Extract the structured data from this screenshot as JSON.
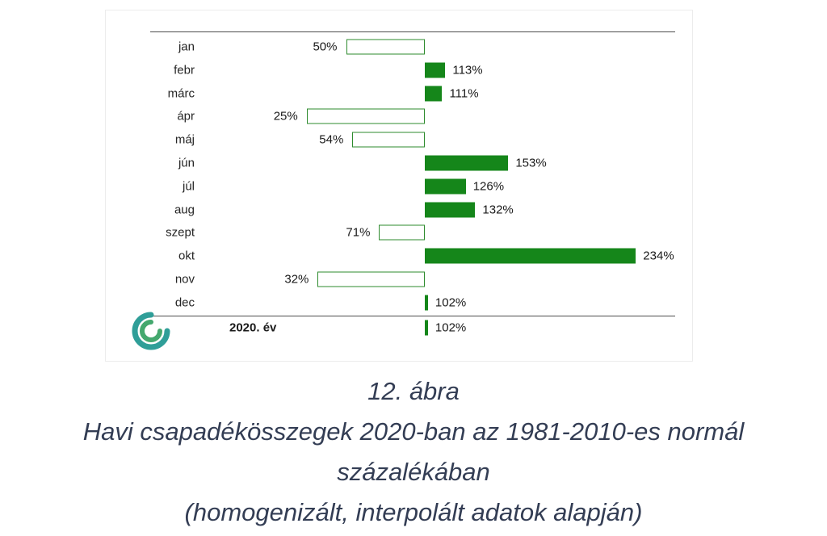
{
  "chart_data": {
    "type": "bar",
    "orientation": "horizontal",
    "title": "",
    "unit": "%",
    "baseline": 100,
    "categories": [
      "jan",
      "febr",
      "márc",
      "ápr",
      "máj",
      "jún",
      "júl",
      "aug",
      "szept",
      "okt",
      "nov",
      "dec"
    ],
    "values": [
      50,
      113,
      111,
      25,
      54,
      153,
      126,
      132,
      71,
      234,
      32,
      102
    ],
    "labels": [
      "50%",
      "113%",
      "111%",
      "25%",
      "54%",
      "153%",
      "126%",
      "132%",
      "71%",
      "234%",
      "32%",
      "102%"
    ],
    "summary_row": {
      "label": "2020. év",
      "value": 102,
      "display": "102%"
    },
    "legend": "bars left of 100% baseline are hollow (below normal), bars right are filled (above normal)",
    "colors": {
      "filled": "#15861a",
      "outline": "#2e8b2e",
      "hollow_fill": "#ffffff",
      "rule": "#4d4d4d"
    }
  },
  "logo": {
    "name": "spiral-logo",
    "outer_color": "#2f9e98",
    "inner_color": "#44a86e"
  },
  "caption": {
    "line1": "12. ábra",
    "line2": "Havi csapadékösszegek 2020-ban az 1981-2010-es normál",
    "line3": "százalékában",
    "line4": "(homogenizált, interpolált adatok alapján)"
  }
}
